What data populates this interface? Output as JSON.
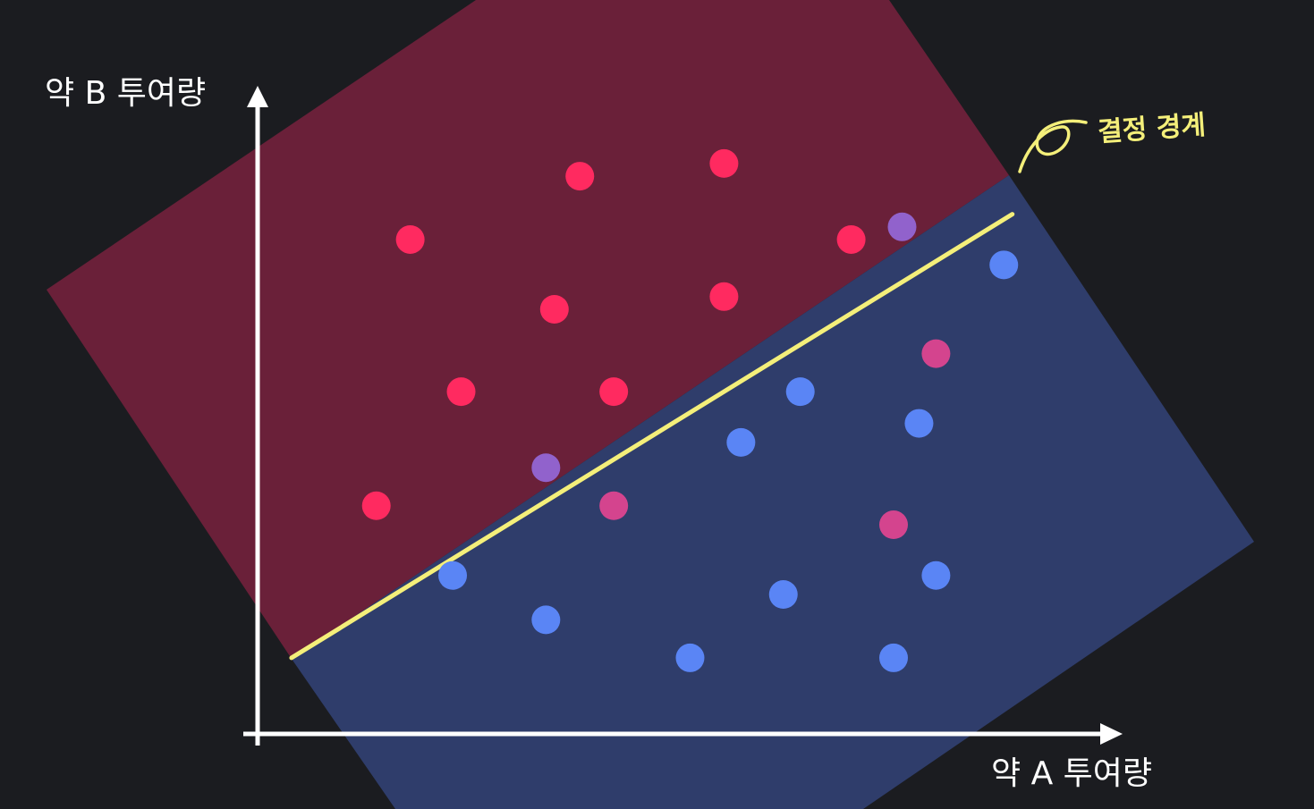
{
  "colors": {
    "background": "#1b1c20",
    "region_red": "#6a2039",
    "region_blue": "#2f3d6b",
    "point_red": "#ff2a60",
    "point_blue": "#5a85f5",
    "point_magenta": "#d4448e",
    "point_purple": "#9162cc",
    "boundary": "#f4ef7a",
    "axis": "#ffffff"
  },
  "chart_data": {
    "type": "scatter",
    "title": "",
    "xlabel": "약 A 투여량",
    "ylabel": "약 B 투여량",
    "xlim": [
      0,
      10
    ],
    "ylim": [
      0,
      10
    ],
    "grid": false,
    "annotation": "결정 경계",
    "boundary": {
      "x": [
        0.4,
        8.9
      ],
      "y": [
        1.2,
        8.2
      ]
    },
    "series": [
      {
        "name": "red",
        "color": "#ff2a60",
        "points": [
          [
            1.8,
            7.8
          ],
          [
            3.8,
            8.8
          ],
          [
            5.5,
            9.0
          ],
          [
            7.0,
            7.8
          ],
          [
            3.5,
            6.7
          ],
          [
            5.5,
            6.9
          ],
          [
            2.4,
            5.4
          ],
          [
            4.2,
            5.4
          ],
          [
            1.4,
            3.6
          ]
        ]
      },
      {
        "name": "blue",
        "color": "#5a85f5",
        "points": [
          [
            8.8,
            7.4
          ],
          [
            6.4,
            5.4
          ],
          [
            7.8,
            4.9
          ],
          [
            5.7,
            4.6
          ],
          [
            2.3,
            2.5
          ],
          [
            3.4,
            1.8
          ],
          [
            5.1,
            1.2
          ],
          [
            6.2,
            2.2
          ],
          [
            8.0,
            2.5
          ],
          [
            7.5,
            1.2
          ]
        ]
      },
      {
        "name": "red-misclassified",
        "color": "#d4448e",
        "points": [
          [
            8.0,
            6.0
          ],
          [
            4.2,
            3.6
          ],
          [
            7.5,
            3.3
          ]
        ]
      },
      {
        "name": "boundary-purple",
        "color": "#9162cc",
        "points": [
          [
            7.6,
            8.0
          ],
          [
            3.4,
            4.2
          ]
        ]
      }
    ]
  }
}
